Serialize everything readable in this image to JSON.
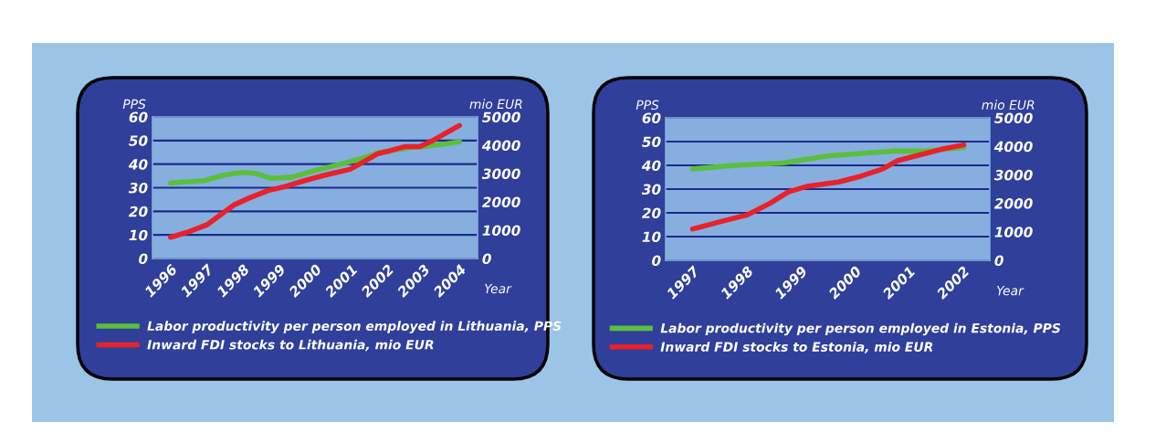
{
  "chart_data": [
    {
      "type": "line",
      "ylabel": "PPS",
      "y2label": "mio EUR",
      "xlabel": "Year",
      "xlim": [
        1995.5,
        2004.5
      ],
      "xticks": [
        1996,
        1997,
        1998,
        1999,
        2000,
        2001,
        2002,
        2003,
        2004
      ],
      "ylim": [
        0,
        60
      ],
      "yticks": [
        0,
        10,
        20,
        30,
        40,
        50,
        60
      ],
      "y2lim": [
        0,
        5000
      ],
      "y2ticks": [
        0,
        1000,
        2000,
        3000,
        4000,
        5000
      ],
      "grid": "y",
      "legend": "bottom",
      "marker": "none",
      "line_style": "solid",
      "series": [
        {
          "name": "Labor productivity per person employed in Lithuania, PPS",
          "color": "#5cbf3a",
          "x": [
            1996.0,
            1996.93,
            1997.52,
            1998.03,
            1998.36,
            1998.78,
            1999.37,
            2000.05,
            2000.72,
            2001.31,
            2001.81,
            2002.23,
            2002.65,
            2003.07,
            2003.58,
            2004.0
          ],
          "values": [
            32,
            33,
            35.5,
            36.5,
            36,
            34,
            34.5,
            37.5,
            40,
            42.5,
            45,
            46,
            47,
            47.5,
            48.5,
            49.5
          ]
        },
        {
          "name": "Inward FDI stocks to Lithuania, mio EUR",
          "color": "#e8212a",
          "axis": "y2",
          "x": [
            1996.0,
            1996.51,
            1997.02,
            1997.44,
            1997.77,
            1998.2,
            1998.7,
            1999.2,
            1999.71,
            2000.3,
            2000.97,
            2001.39,
            2001.73,
            2002.06,
            2002.48,
            2002.9,
            2003.24,
            2003.58,
            2004.0
          ],
          "values": [
            750,
            950,
            1200,
            1600,
            1900,
            2150,
            2400,
            2550,
            2750,
            2950,
            3150,
            3450,
            3700,
            3800,
            3950,
            3950,
            4150,
            4400,
            4700
          ]
        }
      ]
    },
    {
      "type": "line",
      "ylabel": "PPS",
      "y2label": "mio EUR",
      "xlabel": "Year",
      "xlim": [
        1996.5,
        2002.5
      ],
      "xticks": [
        1997,
        1998,
        1999,
        2000,
        2001,
        2002
      ],
      "ylim": [
        0,
        60
      ],
      "yticks": [
        0,
        10,
        20,
        30,
        40,
        50,
        60
      ],
      "y2lim": [
        0,
        5000
      ],
      "y2ticks": [
        0,
        1000,
        2000,
        3000,
        4000,
        5000
      ],
      "grid": "y",
      "legend": "bottom",
      "marker": "none",
      "line_style": "solid",
      "series": [
        {
          "name": "Labor productivity per person employed in Estonia, PPS",
          "color": "#5cbf3a",
          "x": [
            1997.0,
            1997.79,
            1998.66,
            1999.53,
            2000.11,
            2000.69,
            2001.27,
            2002.02
          ],
          "values": [
            38.5,
            40,
            41,
            44,
            45,
            46,
            46,
            47.5
          ]
        },
        {
          "name": "Inward FDI stocks to Estonia, mio EUR",
          "color": "#e8212a",
          "axis": "y2",
          "x": [
            1997.0,
            1997.5,
            1998.02,
            1998.43,
            1998.77,
            1999.12,
            1999.7,
            2000.11,
            2000.51,
            2000.8,
            2001.21,
            2001.61,
            2002.02
          ],
          "values": [
            1100,
            1350,
            1600,
            2000,
            2400,
            2600,
            2750,
            2950,
            3200,
            3500,
            3700,
            3900,
            4050
          ]
        }
      ]
    }
  ]
}
